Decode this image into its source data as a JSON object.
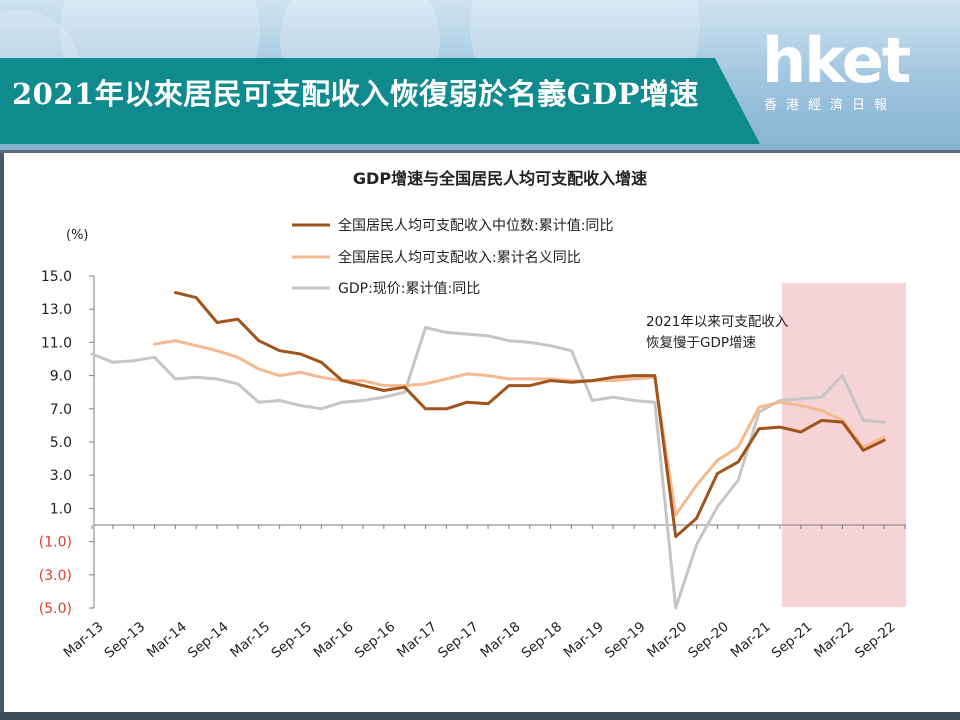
{
  "header": {
    "title": "2021年以來居民可支配收入恢復弱於名義GDP增速",
    "logo_text": "hket",
    "logo_sub": "香港經濟日報"
  },
  "colors": {
    "median": "#a0541c",
    "nominal": "#f5b98f",
    "gdp": "#c6c6c6",
    "highlight": "#f6d3d6",
    "negative_label": "#e03b2f"
  },
  "chart_data": {
    "type": "line",
    "title": "GDP增速与全国居民人均可支配收入增速",
    "ylabel": "(%)",
    "ylim": [
      -5.0,
      15.0
    ],
    "yticks": [
      "15.0",
      "13.0",
      "11.0",
      "9.0",
      "7.0",
      "5.0",
      "3.0",
      "1.0",
      "(1.0)",
      "(3.0)",
      "(5.0)"
    ],
    "x": [
      "Mar-13",
      "Jun-13",
      "Sep-13",
      "Dec-13",
      "Mar-14",
      "Jun-14",
      "Sep-14",
      "Dec-14",
      "Mar-15",
      "Jun-15",
      "Sep-15",
      "Dec-15",
      "Mar-16",
      "Jun-16",
      "Sep-16",
      "Dec-16",
      "Mar-17",
      "Jun-17",
      "Sep-17",
      "Dec-17",
      "Mar-18",
      "Jun-18",
      "Sep-18",
      "Dec-18",
      "Mar-19",
      "Jun-19",
      "Sep-19",
      "Dec-19",
      "Mar-20",
      "Jun-20",
      "Sep-20",
      "Dec-20",
      "Mar-21",
      "Jun-21",
      "Sep-21",
      "Dec-21",
      "Mar-22",
      "Jun-22",
      "Sep-22",
      "Dec-22"
    ],
    "xtick_labels": [
      "Mar-13",
      "Sep-13",
      "Mar-14",
      "Sep-14",
      "Mar-15",
      "Sep-15",
      "Mar-16",
      "Sep-16",
      "Mar-17",
      "Sep-17",
      "Mar-18",
      "Sep-18",
      "Mar-19",
      "Sep-19",
      "Mar-20",
      "Sep-20",
      "Mar-21",
      "Sep-21",
      "Mar-22",
      "Sep-22"
    ],
    "series": [
      {
        "name": "全国居民人均可支配收入中位数:累计值:同比",
        "values": [
          null,
          null,
          null,
          null,
          14.0,
          13.7,
          12.2,
          12.4,
          11.1,
          10.5,
          10.3,
          9.8,
          8.7,
          8.4,
          8.1,
          8.3,
          7.0,
          7.0,
          7.4,
          7.3,
          8.4,
          8.4,
          8.7,
          8.6,
          8.7,
          8.9,
          9.0,
          9.0,
          -0.7,
          0.4,
          3.1,
          3.8,
          5.8,
          5.9,
          5.6,
          6.3,
          6.2,
          4.5,
          5.1,
          null
        ]
      },
      {
        "name": "全国居民人均可支配收入:累计名义同比",
        "values": [
          null,
          null,
          null,
          10.9,
          11.1,
          10.8,
          10.5,
          10.1,
          9.4,
          9.0,
          9.2,
          8.9,
          8.7,
          8.7,
          8.4,
          8.4,
          8.5,
          8.8,
          9.1,
          9.0,
          8.8,
          8.8,
          8.8,
          8.7,
          8.7,
          8.7,
          8.8,
          8.9,
          0.6,
          2.4,
          3.9,
          4.7,
          7.1,
          7.4,
          7.2,
          6.9,
          6.3,
          4.7,
          5.3,
          null
        ]
      },
      {
        "name": "GDP:现价:累计值:同比",
        "values": [
          10.3,
          9.8,
          9.9,
          10.1,
          8.8,
          8.9,
          8.8,
          8.5,
          7.4,
          7.5,
          7.2,
          7.0,
          7.4,
          7.5,
          7.7,
          8.0,
          11.9,
          11.6,
          11.5,
          11.4,
          11.1,
          11.0,
          10.8,
          10.5,
          7.5,
          7.7,
          7.5,
          7.4,
          -5.0,
          -1.2,
          1.1,
          2.7,
          6.8,
          7.5,
          7.6,
          7.7,
          9.0,
          6.3,
          6.2,
          null
        ]
      }
    ],
    "highlight_range": [
      "Jun-21",
      "Dec-22"
    ],
    "annotation": [
      "2021年以来可支配收入",
      "恢复慢于GDP增速"
    ],
    "legend_position": "top-center",
    "grid": false
  }
}
